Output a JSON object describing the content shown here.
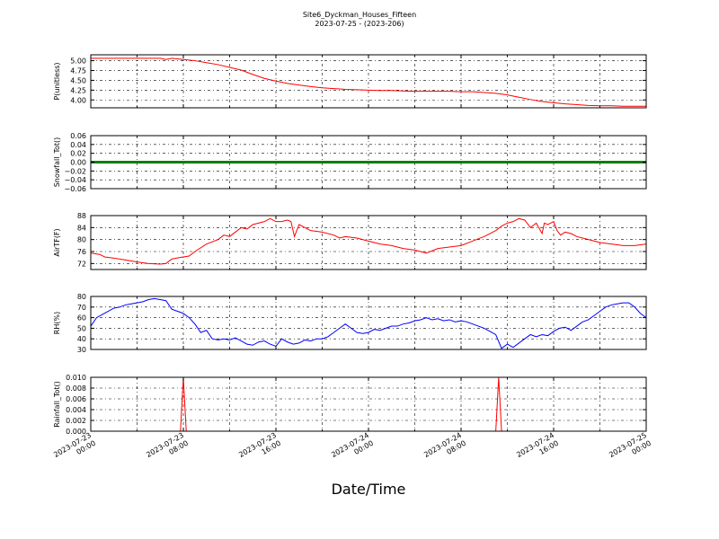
{
  "figure": {
    "title_line1": "Site6_Dyckman_Houses_Fifteen",
    "title_line2": "2023-07-25 - (2023-206)",
    "xlabel": "Date/Time",
    "xtick_labels": [
      [
        "2023-07-23",
        "00:00"
      ],
      [
        "2023-07-23",
        "08:00"
      ],
      [
        "2023-07-23",
        "16:00"
      ],
      [
        "2023-07-24",
        "00:00"
      ],
      [
        "2023-07-24",
        "08:00"
      ],
      [
        "2023-07-24",
        "16:00"
      ],
      [
        "2023-07-25",
        "00:00"
      ]
    ]
  },
  "chart_data": [
    {
      "type": "line",
      "ylabel": "P(unitless)",
      "color": "#ff0000",
      "ylim": [
        3.8,
        5.15
      ],
      "yticks": [
        4.0,
        4.25,
        4.5,
        4.75,
        5.0
      ],
      "ytick_labels": [
        "4.00",
        "4.25",
        "4.50",
        "4.75",
        "5.00"
      ],
      "x_hours": [
        0,
        2,
        4,
        6,
        6.5,
        7,
        8,
        9,
        10,
        11,
        12,
        13,
        14,
        15,
        16,
        17,
        18,
        19,
        20,
        21,
        22,
        23,
        24,
        25,
        26,
        27,
        28,
        29,
        30,
        31,
        32,
        33,
        34,
        35,
        36,
        37,
        38,
        39,
        40,
        41,
        42,
        43,
        44,
        45,
        46,
        47,
        48
      ],
      "values": [
        5.06,
        5.06,
        5.06,
        5.06,
        5.03,
        5.06,
        5.03,
        5.0,
        4.95,
        4.9,
        4.83,
        4.76,
        4.65,
        4.55,
        4.48,
        4.42,
        4.38,
        4.34,
        4.31,
        4.29,
        4.27,
        4.26,
        4.25,
        4.24,
        4.24,
        4.23,
        4.22,
        4.22,
        4.22,
        4.22,
        4.21,
        4.21,
        4.19,
        4.17,
        4.13,
        4.07,
        4.01,
        3.96,
        3.93,
        3.9,
        3.88,
        3.86,
        3.85,
        3.85,
        3.84,
        3.84,
        3.84
      ]
    },
    {
      "type": "line",
      "ylabel": "Snowfall_Tot()",
      "color": "#008000",
      "ylim": [
        -0.06,
        0.06
      ],
      "yticks": [
        -0.06,
        -0.04,
        -0.02,
        0.0,
        0.02,
        0.04,
        0.06
      ],
      "ytick_labels": [
        "−0.06",
        "−0.04",
        "−0.02",
        "0.00",
        "0.02",
        "0.04",
        "0.06"
      ],
      "x_hours": [
        0,
        48
      ],
      "values": [
        0.0,
        0.0
      ]
    },
    {
      "type": "line",
      "ylabel": "AirTF(F)",
      "color": "#ff0000",
      "ylim": [
        70,
        88
      ],
      "yticks": [
        72,
        76,
        80,
        84,
        88
      ],
      "ytick_labels": [
        "72",
        "76",
        "80",
        "84",
        "88"
      ],
      "x_hours": [
        0,
        0.8,
        1.2,
        2.0,
        3.0,
        4.0,
        5.0,
        6.0,
        6.5,
        7.0,
        7.7,
        8.5,
        9.0,
        10.0,
        11.0,
        11.5,
        12.0,
        12.5,
        13.0,
        13.5,
        14.0,
        14.5,
        15.0,
        15.5,
        16.0,
        16.5,
        17.0,
        17.3,
        17.6,
        18.0,
        18.5,
        19.0,
        20.0,
        21.0,
        21.5,
        22.0,
        23.0,
        24.0,
        25.0,
        26.0,
        27.0,
        28.0,
        29.0,
        30.0,
        31.0,
        32.0,
        33.0,
        34.0,
        35.0,
        35.5,
        36.0,
        36.5,
        37.0,
        37.5,
        38.0,
        38.5,
        39.0,
        39.2,
        39.5,
        40.0,
        40.3,
        40.6,
        41.0,
        41.5,
        42.0,
        43.0,
        44.0,
        45.0,
        46.0,
        47.0,
        48.0
      ],
      "values": [
        75.5,
        75.0,
        74.2,
        73.8,
        73.2,
        72.5,
        72.0,
        71.8,
        72.0,
        73.5,
        74.0,
        74.5,
        76.0,
        78.5,
        80.0,
        81.5,
        81.0,
        82.5,
        84.0,
        83.5,
        85.0,
        85.5,
        86.0,
        87.0,
        86.0,
        86.0,
        86.5,
        86.0,
        81.0,
        85.0,
        84.0,
        83.0,
        82.5,
        81.5,
        80.5,
        81.0,
        80.5,
        79.5,
        78.5,
        78.0,
        77.0,
        76.5,
        75.5,
        77.0,
        77.5,
        78.0,
        79.5,
        81.0,
        83.0,
        84.5,
        85.5,
        86.0,
        87.0,
        86.5,
        84.0,
        85.5,
        82.0,
        85.5,
        85.0,
        86.0,
        83.0,
        81.5,
        82.5,
        82.0,
        81.0,
        80.0,
        79.0,
        78.5,
        78.0,
        78.0,
        78.5
      ]
    },
    {
      "type": "line",
      "ylabel": "RH(%)",
      "color": "#0000ff",
      "ylim": [
        30,
        80
      ],
      "yticks": [
        30,
        40,
        50,
        60,
        70,
        80
      ],
      "ytick_labels": [
        "30",
        "40",
        "50",
        "60",
        "70",
        "80"
      ],
      "x_hours": [
        0,
        0.5,
        1.0,
        1.5,
        2.0,
        2.5,
        3.0,
        3.5,
        4.0,
        4.5,
        5.0,
        5.5,
        6.0,
        6.5,
        7.0,
        7.5,
        8.0,
        8.5,
        9.0,
        9.5,
        10.0,
        10.5,
        11.0,
        11.5,
        12.0,
        12.5,
        13.0,
        13.5,
        14.0,
        14.5,
        15.0,
        15.5,
        16.0,
        16.5,
        17.0,
        17.5,
        18.0,
        18.5,
        19.0,
        19.5,
        20.0,
        20.5,
        21.0,
        21.5,
        22.0,
        22.5,
        23.0,
        23.5,
        24.0,
        24.5,
        25.0,
        25.5,
        26.0,
        26.5,
        27.0,
        27.5,
        28.0,
        28.5,
        29.0,
        29.5,
        30.0,
        30.5,
        31.0,
        31.5,
        32.0,
        32.5,
        33.0,
        33.5,
        34.0,
        34.5,
        35.0,
        35.5,
        36.0,
        36.5,
        37.0,
        37.5,
        38.0,
        38.5,
        39.0,
        39.5,
        40.0,
        40.5,
        41.0,
        41.5,
        42.0,
        42.5,
        43.0,
        43.5,
        44.0,
        44.5,
        45.0,
        45.5,
        46.0,
        46.5,
        47.0,
        47.5,
        48.0
      ],
      "values": [
        52,
        60,
        63,
        66,
        69,
        70,
        72,
        73,
        74,
        75,
        77,
        78,
        77,
        76,
        68,
        66,
        64,
        60,
        54,
        46,
        48,
        40,
        39,
        40,
        39,
        41,
        38,
        35,
        34,
        37,
        38,
        35,
        33,
        40,
        37,
        35,
        36,
        39,
        38,
        40,
        40,
        42,
        46,
        50,
        54,
        50,
        46,
        45,
        46,
        49,
        48,
        50,
        52,
        52,
        54,
        55,
        57,
        58,
        60,
        58,
        59,
        57,
        58,
        56,
        57,
        56,
        54,
        52,
        50,
        47,
        44,
        31,
        35,
        32,
        36,
        40,
        44,
        42,
        44,
        43,
        47,
        50,
        51,
        48,
        52,
        56,
        58,
        62,
        66,
        70,
        72,
        73,
        74,
        74,
        70,
        64,
        60
      ]
    },
    {
      "type": "line",
      "ylabel": "Rainfall_Tot()",
      "color": "#ff0000",
      "ylim": [
        0.0,
        0.01
      ],
      "yticks": [
        0.0,
        0.002,
        0.004,
        0.006,
        0.008,
        0.01
      ],
      "ytick_labels": [
        "0.000",
        "0.002",
        "0.004",
        "0.006",
        "0.008",
        "0.010"
      ],
      "x_hours": [
        0,
        7.75,
        8.0,
        8.25,
        35.0,
        35.25,
        35.5,
        48
      ],
      "values": [
        0.0,
        0.0,
        0.01,
        0.0,
        0.0,
        0.01,
        0.0,
        0.0
      ]
    }
  ]
}
